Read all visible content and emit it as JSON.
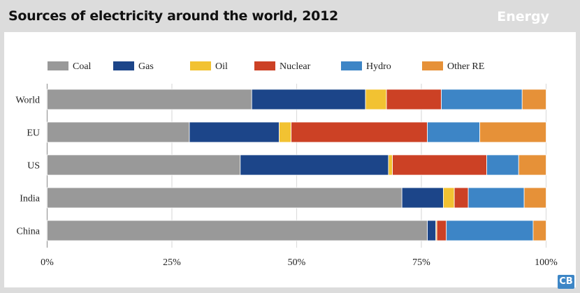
{
  "header": {
    "title": "Sources of electricity around the world, 2012",
    "section": "Energy",
    "logo": "CB"
  },
  "chart_data": {
    "type": "bar",
    "orientation": "horizontal",
    "stacked": true,
    "title": "Sources of electricity around the world, 2012",
    "categories": [
      "World",
      "EU",
      "US",
      "India",
      "China"
    ],
    "series": [
      {
        "name": "Coal",
        "color": "#999999",
        "values": [
          41.0,
          28.5,
          38.7,
          71.1,
          76.2
        ]
      },
      {
        "name": "Gas",
        "color": "#1c4589",
        "values": [
          22.8,
          18.0,
          29.7,
          8.3,
          1.7
        ]
      },
      {
        "name": "Oil",
        "color": "#f2c232",
        "values": [
          4.2,
          2.4,
          0.8,
          2.2,
          0.2
        ]
      },
      {
        "name": "Nuclear",
        "color": "#cc4125",
        "values": [
          11.0,
          27.3,
          18.9,
          2.8,
          1.9
        ]
      },
      {
        "name": "Hydro",
        "color": "#3d85c6",
        "values": [
          16.2,
          10.5,
          6.4,
          11.2,
          17.4
        ]
      },
      {
        "name": "Other RE",
        "color": "#e69138",
        "values": [
          4.8,
          13.3,
          5.5,
          4.4,
          2.6
        ]
      }
    ],
    "xlim": [
      0,
      100
    ],
    "xticks": [
      "0%",
      "25%",
      "50%",
      "75%",
      "100%"
    ],
    "grid": true,
    "legend": "top"
  }
}
